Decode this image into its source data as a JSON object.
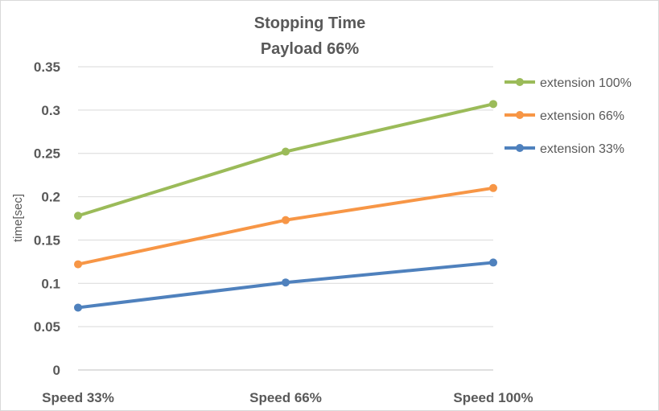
{
  "chart_data": {
    "type": "line",
    "title": "Stopping Time",
    "subtitle": "Payload 66%",
    "xlabel": "",
    "ylabel": "time[sec]",
    "categories": [
      "Speed 33%",
      "Speed 66%",
      "Speed 100%"
    ],
    "ylim": [
      0,
      0.35
    ],
    "yticks": [
      0,
      0.05,
      0.1,
      0.15,
      0.2,
      0.25,
      0.3,
      0.35
    ],
    "ytick_labels": [
      "0",
      "0.05",
      "0.1",
      "0.15",
      "0.2",
      "0.25",
      "0.3",
      "0.35"
    ],
    "grid": true,
    "legend_position": "right",
    "series": [
      {
        "name": "extension 100%",
        "color": "#9bbb59",
        "values": [
          0.178,
          0.252,
          0.307
        ]
      },
      {
        "name": "extension 66%",
        "color": "#f79646",
        "values": [
          0.122,
          0.173,
          0.21
        ]
      },
      {
        "name": "extension 33%",
        "color": "#4f81bd",
        "values": [
          0.072,
          0.101,
          0.124
        ]
      }
    ]
  }
}
